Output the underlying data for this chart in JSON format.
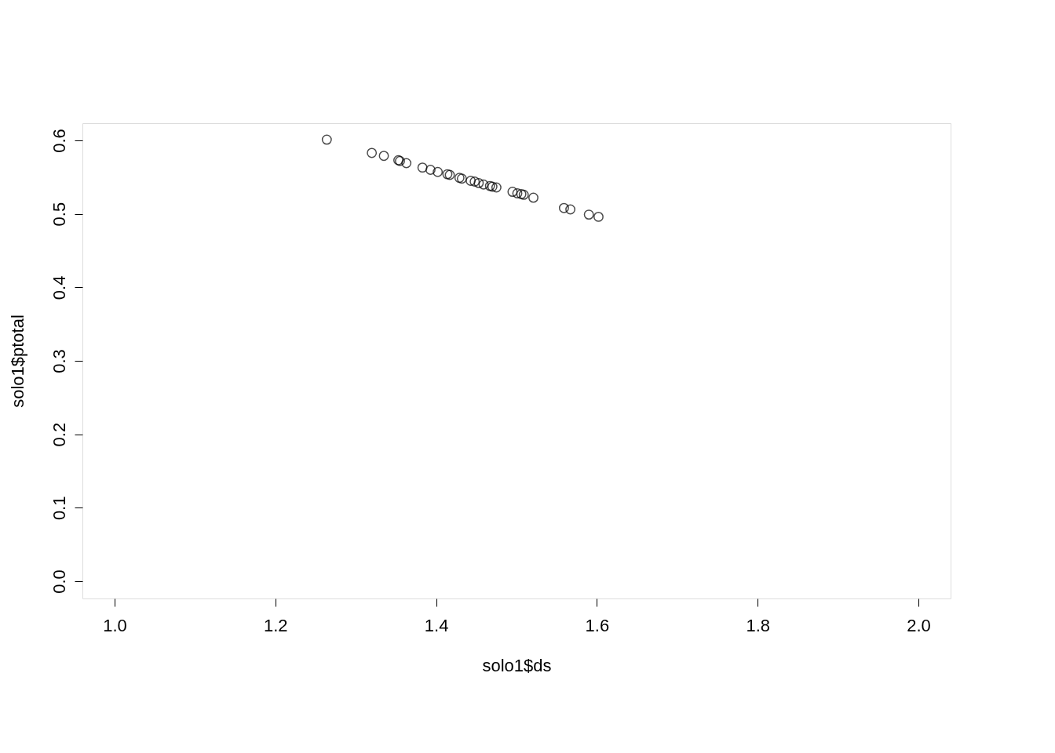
{
  "chart_data": {
    "type": "scatter",
    "xlabel": "solo1$ds",
    "ylabel": "solo1$ptotal",
    "x": [
      1.264,
      1.32,
      1.335,
      1.353,
      1.355,
      1.363,
      1.383,
      1.393,
      1.402,
      1.414,
      1.417,
      1.429,
      1.432,
      1.443,
      1.448,
      1.453,
      1.459,
      1.467,
      1.47,
      1.475,
      1.495,
      1.501,
      1.506,
      1.509,
      1.521,
      1.559,
      1.567,
      1.59,
      1.602
    ],
    "series": [
      {
        "color": "#000000",
        "values": [
          0.601,
          0.583,
          0.579,
          0.573,
          0.572,
          0.569,
          0.563,
          0.56,
          0.557,
          0.554,
          0.553,
          0.549,
          0.548,
          0.545,
          0.544,
          0.542,
          0.54,
          0.538,
          0.537,
          0.536,
          0.53,
          0.528,
          0.527,
          0.526,
          0.522,
          0.508,
          0.506,
          0.499,
          0.496
        ]
      }
    ],
    "xlim": [
      0.96,
      2.04
    ],
    "ylim": [
      -0.0235,
      0.6235
    ],
    "xticks": [
      {
        "value": 1.0,
        "label": "1.0"
      },
      1.2,
      1.4,
      1.6,
      1.8,
      {
        "value": 2.0,
        "label": "2.0"
      }
    ],
    "yticks": [
      {
        "value": 0.0,
        "label": "0.0"
      },
      0.1,
      0.2,
      0.3,
      0.4,
      0.5,
      0.6
    ],
    "marker": "circle",
    "grid": false
  }
}
